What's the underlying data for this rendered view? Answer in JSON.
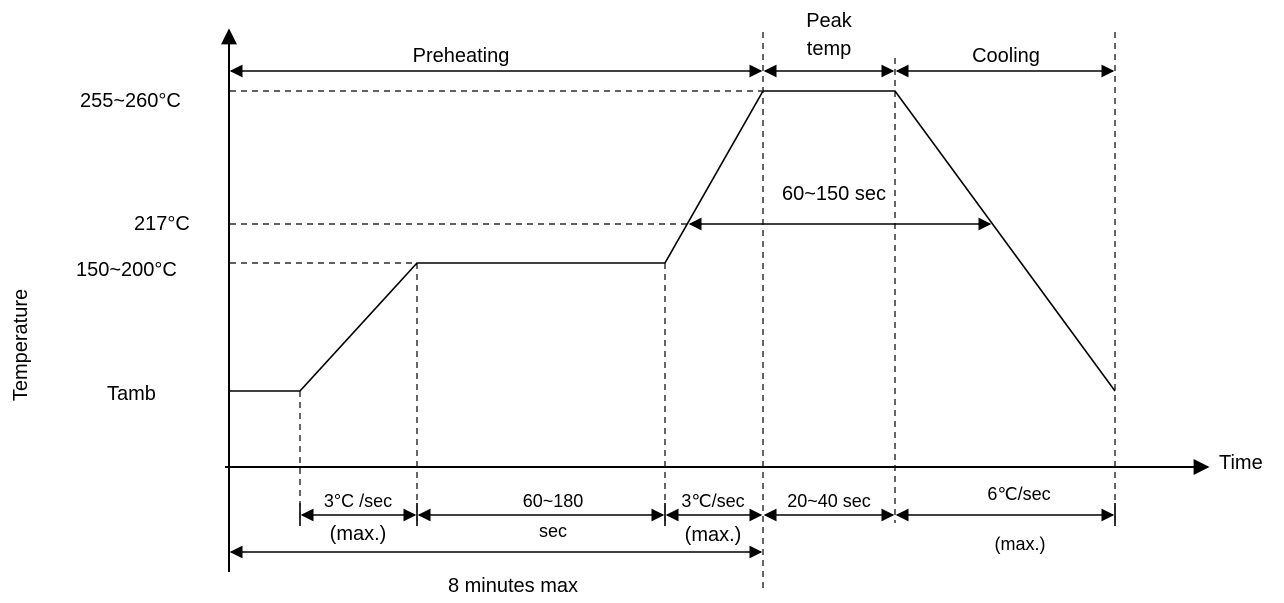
{
  "axes": {
    "y_label": "Temperature",
    "x_label": "Time"
  },
  "temperature_levels": {
    "peak": "255~260°C",
    "liquidus": "217°C",
    "soak": "150~200°C",
    "ambient": "Tamb"
  },
  "phases": {
    "preheating": "Preheating",
    "peak_line1": "Peak",
    "peak_line2": "temp",
    "cooling": "Cooling"
  },
  "intervals": {
    "above_liquidus": "60~150 sec",
    "ramp_up_rate": "3°C /sec",
    "ramp_up_max": "(max.)",
    "soak_time_line1": "60~180",
    "soak_time_line2": "sec",
    "ramp_to_peak_rate": "3℃/sec",
    "ramp_to_peak_max": "(max.)",
    "peak_time": "20~40 sec",
    "cooling_rate": "6℃/sec",
    "cooling_max": "(max.)",
    "total_time": "8 minutes max"
  }
}
